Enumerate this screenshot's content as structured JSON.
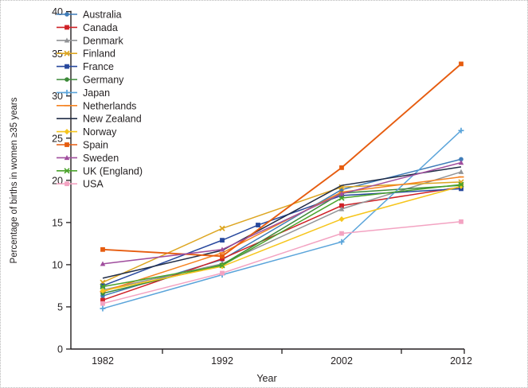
{
  "figure": {
    "type_label": "line-chart"
  },
  "chart_data": {
    "type": "line",
    "title": "",
    "xlabel": "Year",
    "ylabel": "Percentage of births in women ≥35 years",
    "x": [
      1982,
      1992,
      2002,
      2012
    ],
    "xtick_labels": [
      "1982",
      "1992",
      "2002",
      "2012"
    ],
    "ylim": [
      0,
      40
    ],
    "yticks": [
      0,
      5,
      10,
      15,
      20,
      25,
      30,
      35,
      40
    ],
    "grid": false,
    "legend_position": "top-left",
    "axis_color": "#231f20",
    "series": [
      {
        "name": "Australia",
        "color": "#3f7cb8",
        "marker": "circle",
        "values": [
          6.3,
          10.6,
          18.9,
          22.5
        ]
      },
      {
        "name": "Canada",
        "color": "#cf2127",
        "marker": "square",
        "values": [
          5.8,
          10.7,
          17.0,
          19.2
        ]
      },
      {
        "name": "Denmark",
        "color": "#929497",
        "marker": "triangle",
        "values": [
          7.0,
          10.1,
          16.6,
          21.0
        ]
      },
      {
        "name": "Finland",
        "color": "#dda622",
        "marker": "x",
        "values": [
          7.9,
          14.3,
          19.2,
          19.8
        ]
      },
      {
        "name": "France",
        "color": "#27489d",
        "marker": "square",
        "values": [
          7.5,
          12.9,
          18.2,
          19.0
        ],
        "points": [
          [
            1982,
            7.5
          ],
          [
            1992,
            12.9
          ],
          [
            1995,
            14.7
          ],
          [
            2002,
            18.2
          ],
          [
            2012,
            19.0
          ]
        ]
      },
      {
        "name": "Germany",
        "color": "#3c8a38",
        "marker": "circle",
        "values": [
          6.6,
          10.0,
          18.5,
          19.4
        ]
      },
      {
        "name": "Japan",
        "color": "#5aa4da",
        "marker": "plus",
        "values": [
          4.8,
          8.8,
          12.7,
          25.9
        ]
      },
      {
        "name": "Netherlands",
        "color": "#f58220",
        "marker": "dash",
        "values": [
          6.8,
          11.4,
          18.6,
          20.4
        ]
      },
      {
        "name": "New Zealand",
        "color": "#202c46",
        "marker": "none",
        "values": [
          8.4,
          11.7,
          19.4,
          21.6
        ]
      },
      {
        "name": "Norway",
        "color": "#f6c51c",
        "marker": "diamond",
        "values": [
          6.9,
          9.8,
          15.4,
          19.3
        ]
      },
      {
        "name": "Spain",
        "color": "#e65c0f",
        "marker": "square",
        "values": [
          11.8,
          11.0,
          21.5,
          33.8
        ]
      },
      {
        "name": "Sweden",
        "color": "#a04e9e",
        "marker": "triangle",
        "values": [
          10.1,
          11.8,
          18.4,
          22.1
        ]
      },
      {
        "name": "UK (England)",
        "color": "#4aa32b",
        "marker": "x",
        "values": [
          7.4,
          9.9,
          17.9,
          19.5
        ]
      },
      {
        "name": "USA",
        "color": "#f3a3c2",
        "marker": "square",
        "values": [
          5.4,
          9.0,
          13.7,
          15.1
        ]
      }
    ]
  }
}
